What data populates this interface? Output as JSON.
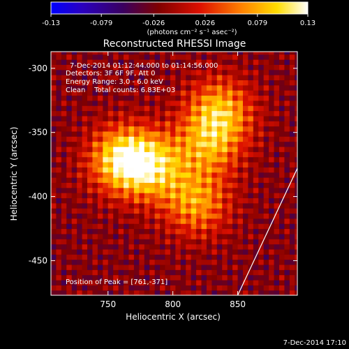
{
  "chart_data": {
    "type": "heatmap",
    "title": "Reconstructed RHESSI Image",
    "xlabel": "Heliocentric X (arcsec)",
    "ylabel": "Heliocentric Y (arcsec)",
    "xlim": [
      706,
      896
    ],
    "ylim": [
      -477,
      -287
    ],
    "x_ticks": [
      750,
      800,
      850
    ],
    "y_ticks": [
      -300,
      -350,
      -400,
      -450
    ],
    "colorbar": {
      "range": [
        -0.13,
        0.13
      ],
      "ticks": [
        "-0.13",
        "-0.079",
        "-0.026",
        "0.026",
        "0.079",
        "0.13"
      ],
      "colors": [
        "#0000ff",
        "#ff0000",
        "#ffff00",
        "#ffffff"
      ]
    },
    "units_label": "(photons cm⁻² s⁻¹ asec⁻²)",
    "annotations": [
      "7-Dec-2014 01:12:44.000 to 01:14:56.000",
      "Detectors: 3F 6F 9F, Att 0",
      "Energy Range: 3.0 - 6.0 keV",
      "Clean    Total counts: 6.83E+03"
    ],
    "peak_text": "Position of Peak = [761,-371]",
    "sources": [
      {
        "x": 761,
        "y": -371,
        "value": 0.13
      },
      {
        "x": 785,
        "y": -376,
        "value": 0.1
      },
      {
        "x": 836,
        "y": -333,
        "value": 0.1
      },
      {
        "x": 818,
        "y": -405,
        "value": 0.09
      },
      {
        "x": 828,
        "y": -360,
        "value": 0.08
      }
    ],
    "limb_line": [
      [
        850,
        -477
      ],
      [
        896,
        -378
      ]
    ],
    "timestamp": "7-Dec-2014 17:10"
  }
}
